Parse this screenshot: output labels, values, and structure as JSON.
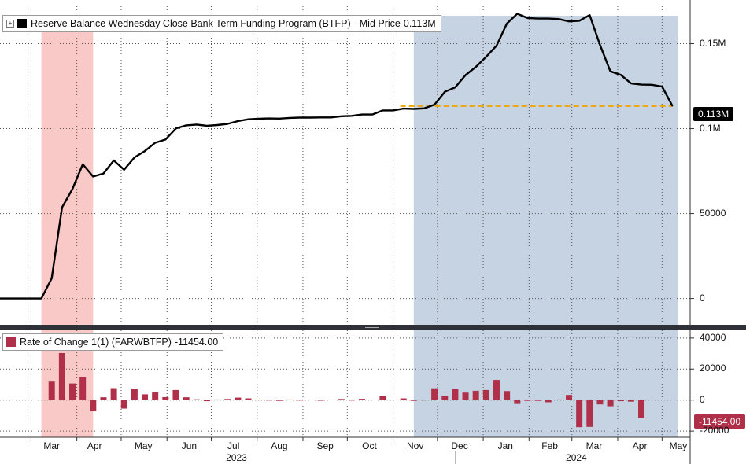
{
  "chart_data": [
    {
      "type": "line",
      "title": "Reserve Balance Wednesday Close Bank Term Funding Program (BTFP) - Mid Price",
      "series": [
        {
          "name": "Reserve Balance Wednesday Close Bank Term Funding Program (BTFP) - Mid Price",
          "color": "#000000",
          "last_value_label": "0.113M",
          "points": [
            [
              "2023-02-08",
              0
            ],
            [
              "2023-02-15",
              0
            ],
            [
              "2023-03-01",
              0
            ],
            [
              "2023-03-08",
              0
            ],
            [
              "2023-03-15",
              11900
            ],
            [
              "2023-03-22",
              53700
            ],
            [
              "2023-03-29",
              64400
            ],
            [
              "2023-04-05",
              79000
            ],
            [
              "2023-04-12",
              71800
            ],
            [
              "2023-04-19",
              73600
            ],
            [
              "2023-04-26",
              81300
            ],
            [
              "2023-05-03",
              75800
            ],
            [
              "2023-05-10",
              83100
            ],
            [
              "2023-05-17",
              86800
            ],
            [
              "2023-05-24",
              91700
            ],
            [
              "2023-05-31",
              93600
            ],
            [
              "2023-06-07",
              100100
            ],
            [
              "2023-06-14",
              101900
            ],
            [
              "2023-06-21",
              102400
            ],
            [
              "2023-06-28",
              101700
            ],
            [
              "2023-07-05",
              102100
            ],
            [
              "2023-07-12",
              102800
            ],
            [
              "2023-07-19",
              104400
            ],
            [
              "2023-07-26",
              105500
            ],
            [
              "2023-08-02",
              105800
            ],
            [
              "2023-08-09",
              106000
            ],
            [
              "2023-08-16",
              105900
            ],
            [
              "2023-08-23",
              106300
            ],
            [
              "2023-08-30",
              106500
            ],
            [
              "2023-09-06",
              106500
            ],
            [
              "2023-09-13",
              106600
            ],
            [
              "2023-09-20",
              106600
            ],
            [
              "2023-09-27",
              107300
            ],
            [
              "2023-10-04",
              107500
            ],
            [
              "2023-10-11",
              108300
            ],
            [
              "2023-10-18",
              108300
            ],
            [
              "2023-10-25",
              110700
            ],
            [
              "2023-11-01",
              110700
            ],
            [
              "2023-11-08",
              111800
            ],
            [
              "2023-11-15",
              111600
            ],
            [
              "2023-11-22",
              111900
            ],
            [
              "2023-11-29",
              114100
            ],
            [
              "2023-12-06",
              121700
            ],
            [
              "2023-12-13",
              124300
            ],
            [
              "2023-12-20",
              131500
            ],
            [
              "2023-12-27",
              136300
            ],
            [
              "2024-01-03",
              142300
            ],
            [
              "2024-01-10",
              148800
            ],
            [
              "2024-01-17",
              161800
            ],
            [
              "2024-01-24",
              167600
            ],
            [
              "2024-01-31",
              165100
            ],
            [
              "2024-02-07",
              164800
            ],
            [
              "2024-02-14",
              164800
            ],
            [
              "2024-02-21",
              164500
            ],
            [
              "2024-02-28",
              163100
            ],
            [
              "2024-03-06",
              163500
            ],
            [
              "2024-03-13",
              166800
            ],
            [
              "2024-03-20",
              149300
            ],
            [
              "2024-03-27",
              133700
            ],
            [
              "2024-04-03",
              131700
            ],
            [
              "2024-04-10",
              126600
            ],
            [
              "2024-04-17",
              125900
            ],
            [
              "2024-04-24",
              125800
            ],
            [
              "2024-05-01",
              124800
            ],
            [
              "2024-05-08",
              113300
            ]
          ]
        }
      ],
      "reference_line": {
        "value": 113300,
        "color": "#f0a500",
        "style": "dashed"
      },
      "yaxis": {
        "ticks": [
          0,
          50000,
          100000,
          150000
        ],
        "tick_labels": [
          "0",
          "50000",
          "0.1M",
          "0.15M"
        ],
        "range": [
          -15000,
          172000
        ]
      },
      "grid": true
    },
    {
      "type": "bar",
      "title": "Rate of Change 1(1) (FARWBTFP)",
      "series": [
        {
          "name": "Rate of Change 1(1) (FARWBTFP)",
          "color": "#b0304a",
          "last_value_label": "-11454.00",
          "points": [
            [
              "2023-03-15",
              11900
            ],
            [
              "2023-03-22",
              30300
            ],
            [
              "2023-03-29",
              10700
            ],
            [
              "2023-04-05",
              14600
            ],
            [
              "2023-04-12",
              -7200
            ],
            [
              "2023-04-19",
              1800
            ],
            [
              "2023-04-26",
              7700
            ],
            [
              "2023-05-03",
              -5500
            ],
            [
              "2023-05-10",
              7300
            ],
            [
              "2023-05-17",
              3700
            ],
            [
              "2023-05-24",
              4900
            ],
            [
              "2023-05-31",
              1900
            ],
            [
              "2023-06-07",
              6500
            ],
            [
              "2023-06-14",
              1800
            ],
            [
              "2023-06-21",
              500
            ],
            [
              "2023-06-28",
              -700
            ],
            [
              "2023-07-05",
              400
            ],
            [
              "2023-07-12",
              700
            ],
            [
              "2023-07-19",
              1600
            ],
            [
              "2023-07-26",
              1100
            ],
            [
              "2023-08-02",
              300
            ],
            [
              "2023-08-09",
              200
            ],
            [
              "2023-08-16",
              -100
            ],
            [
              "2023-08-23",
              400
            ],
            [
              "2023-08-30",
              200
            ],
            [
              "2023-09-13",
              100
            ],
            [
              "2023-09-27",
              700
            ],
            [
              "2023-10-04",
              200
            ],
            [
              "2023-10-11",
              800
            ],
            [
              "2023-10-25",
              2400
            ],
            [
              "2023-11-08",
              1100
            ],
            [
              "2023-11-15",
              -200
            ],
            [
              "2023-11-22",
              300
            ],
            [
              "2023-11-29",
              7600
            ],
            [
              "2023-12-06",
              2600
            ],
            [
              "2023-12-13",
              7200
            ],
            [
              "2023-12-20",
              4800
            ],
            [
              "2023-12-27",
              6000
            ],
            [
              "2024-01-03",
              6500
            ],
            [
              "2024-01-10",
              13000
            ],
            [
              "2024-01-17",
              5800
            ],
            [
              "2024-01-24",
              -2500
            ],
            [
              "2024-01-31",
              -300
            ],
            [
              "2024-02-07",
              -300
            ],
            [
              "2024-02-14",
              -1400
            ],
            [
              "2024-02-21",
              400
            ],
            [
              "2024-02-28",
              3300
            ],
            [
              "2024-03-06",
              -17500
            ],
            [
              "2024-03-13",
              -17300
            ],
            [
              "2024-03-20",
              -2800
            ],
            [
              "2024-03-27",
              -4000
            ],
            [
              "2024-04-03",
              -700
            ],
            [
              "2024-04-10",
              -1000
            ],
            [
              "2024-04-17",
              -11454
            ]
          ]
        }
      ],
      "yaxis": {
        "ticks": [
          40000,
          20000,
          0,
          -20000
        ],
        "tick_labels": [
          "40000",
          "20000",
          "0",
          "-20000"
        ],
        "range": [
          -24000,
          45000
        ]
      },
      "grid": true
    }
  ],
  "shaded_regions": [
    {
      "start": "2023-03-08",
      "end": "2023-04-12",
      "color": "#f9c9c7"
    },
    {
      "start": "2023-11-15",
      "end": "2024-05-12",
      "color": "#c5d3e3"
    }
  ],
  "xaxis": {
    "months": [
      "Mar",
      "Apr",
      "May",
      "Jun",
      "Jul",
      "Aug",
      "Sep",
      "Oct",
      "Nov",
      "Dec",
      "Jan",
      "Feb",
      "Mar",
      "Apr",
      "May"
    ],
    "years": [
      "2023",
      "2024"
    ],
    "range": [
      "2023-02-08",
      "2024-05-20"
    ]
  }
}
